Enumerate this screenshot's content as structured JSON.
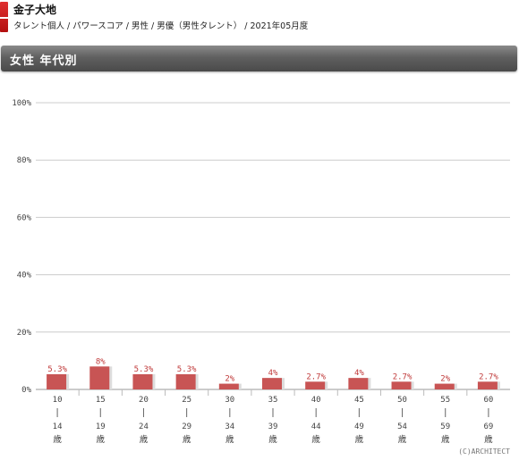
{
  "header": {
    "title": "金子大地",
    "breadcrumbs": "タレント個人 / パワースコア / 男性 / 男優（男性タレント） / 2021年05月度"
  },
  "section": {
    "title": "女性 年代別"
  },
  "copyright": "(C)ARCHITECT",
  "colors": {
    "bar": "#c85454",
    "bar_shadow": "#dddddd",
    "label": "#c03a3a",
    "grid": "#cccccc"
  },
  "chart_data": {
    "type": "bar",
    "categories": [
      {
        "from": "10",
        "to": "14",
        "unit": "歳"
      },
      {
        "from": "15",
        "to": "19",
        "unit": "歳"
      },
      {
        "from": "20",
        "to": "24",
        "unit": "歳"
      },
      {
        "from": "25",
        "to": "29",
        "unit": "歳"
      },
      {
        "from": "30",
        "to": "34",
        "unit": "歳"
      },
      {
        "from": "35",
        "to": "39",
        "unit": "歳"
      },
      {
        "from": "40",
        "to": "44",
        "unit": "歳"
      },
      {
        "from": "45",
        "to": "49",
        "unit": "歳"
      },
      {
        "from": "50",
        "to": "54",
        "unit": "歳"
      },
      {
        "from": "55",
        "to": "59",
        "unit": "歳"
      },
      {
        "from": "60",
        "to": "69",
        "unit": "歳"
      }
    ],
    "values": [
      5.3,
      8,
      5.3,
      5.3,
      2,
      4,
      2.7,
      4,
      2.7,
      2,
      2.7
    ],
    "value_labels": [
      "5.3%",
      "8%",
      "5.3%",
      "5.3%",
      "2%",
      "4%",
      "2.7%",
      "4%",
      "2.7%",
      "2%",
      "2.7%"
    ],
    "yticks": [
      "0%",
      "20%",
      "40%",
      "60%",
      "80%",
      "100%"
    ],
    "ylim": [
      0,
      100
    ],
    "grid": true
  }
}
